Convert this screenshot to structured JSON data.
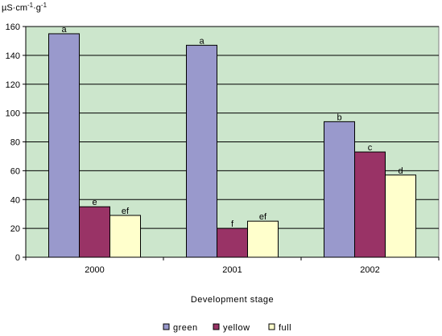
{
  "chart_data": {
    "type": "bar",
    "categories": [
      "2000",
      "2001",
      "2002"
    ],
    "series": [
      {
        "name": "green",
        "color": "#9999cc",
        "values": [
          155,
          147,
          94
        ],
        "labels": [
          "a",
          "a",
          "b"
        ]
      },
      {
        "name": "yellow",
        "color": "#993366",
        "values": [
          35,
          20,
          73
        ],
        "labels": [
          "e",
          "f",
          "c"
        ]
      },
      {
        "name": "full",
        "color": "#ffffcc",
        "values": [
          29,
          25,
          57
        ],
        "labels": [
          "ef",
          "ef",
          "d"
        ]
      }
    ],
    "title": "",
    "xlabel": "Development stage",
    "ylabel_parts": [
      "µS·cm",
      "-1",
      "·g",
      "-1"
    ],
    "ylim": [
      0,
      160
    ],
    "yticks": [
      0,
      20,
      40,
      60,
      80,
      100,
      120,
      140,
      160
    ],
    "grid": true,
    "legend_position": "bottom",
    "plot_background": "#cce6cc"
  }
}
